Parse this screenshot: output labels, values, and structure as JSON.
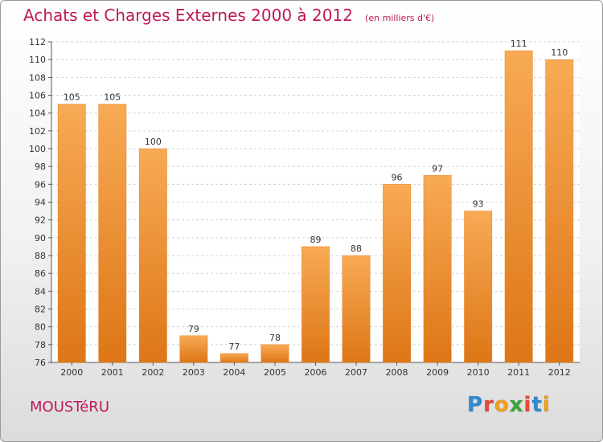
{
  "chart_data": {
    "type": "bar",
    "title": "Achats et Charges Externes 2000 à 2012",
    "subtitle": "(en milliers d'€)",
    "categories": [
      "2000",
      "2001",
      "2002",
      "2003",
      "2004",
      "2005",
      "2006",
      "2007",
      "2008",
      "2009",
      "2010",
      "2011",
      "2012"
    ],
    "values": [
      105,
      105,
      100,
      79,
      77,
      78,
      89,
      88,
      96,
      97,
      93,
      111,
      110
    ],
    "ylim": [
      76,
      112
    ],
    "yticks": [
      76,
      78,
      80,
      82,
      84,
      86,
      88,
      90,
      92,
      94,
      96,
      98,
      100,
      102,
      104,
      106,
      108,
      110,
      112
    ],
    "grid": true,
    "bar_color": "#f0922e",
    "title_color": "#c0185a"
  },
  "place_name": "MOUSTéRU",
  "brand": {
    "letters": [
      "P",
      "r",
      "o",
      "x",
      "i",
      "t",
      "i"
    ],
    "colors": [
      "#2f8ad0",
      "#e8493a",
      "#f2a21a",
      "#3aa63a",
      "#e8493a",
      "#2f8ad0",
      "#f2a21a"
    ]
  }
}
